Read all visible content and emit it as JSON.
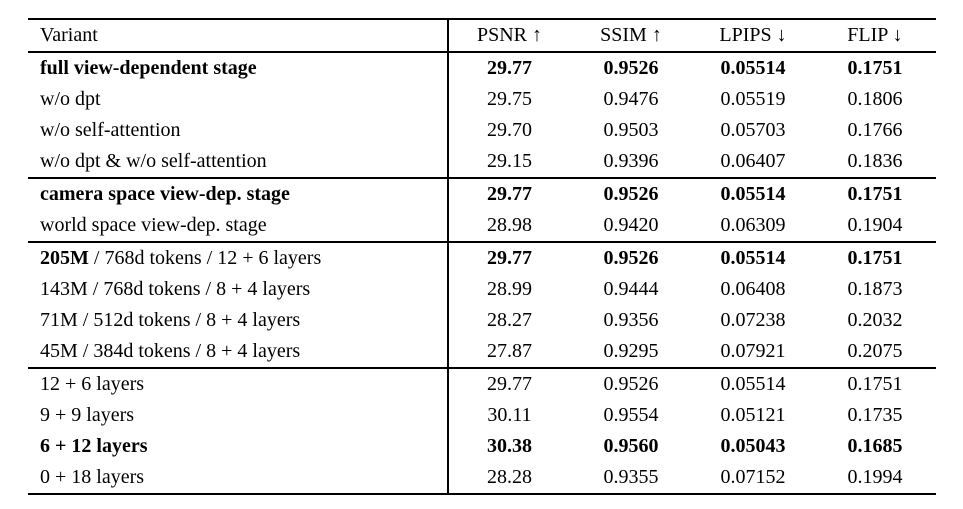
{
  "table": {
    "header": {
      "variant": "Variant",
      "psnr": "PSNR ↑",
      "ssim": "SSIM ↑",
      "lpips": "LPIPS ↓",
      "flip": "FLIP ↓"
    },
    "sections": [
      {
        "rows": [
          {
            "variant": "full view-dependent stage",
            "psnr": "29.77",
            "ssim": "0.9526",
            "lpips": "0.05514",
            "flip": "0.1751"
          },
          {
            "variant": "w/o dpt",
            "psnr": "29.75",
            "ssim": "0.9476",
            "lpips": "0.05519",
            "flip": "0.1806"
          },
          {
            "variant": "w/o self-attention",
            "psnr": "29.70",
            "ssim": "0.9503",
            "lpips": "0.05703",
            "flip": "0.1766"
          },
          {
            "variant": "w/o dpt & w/o self-attention",
            "psnr": "29.15",
            "ssim": "0.9396",
            "lpips": "0.06407",
            "flip": "0.1836"
          }
        ]
      },
      {
        "rows": [
          {
            "variant": "camera space view-dep. stage",
            "psnr": "29.77",
            "ssim": "0.9526",
            "lpips": "0.05514",
            "flip": "0.1751"
          },
          {
            "variant": "world space view-dep. stage",
            "psnr": "28.98",
            "ssim": "0.9420",
            "lpips": "0.06309",
            "flip": "0.1904"
          }
        ]
      },
      {
        "rows": [
          {
            "variant_prefix": "205M",
            "variant_rest": " / 768d tokens / 12 + 6 layers",
            "psnr": "29.77",
            "ssim": "0.9526",
            "lpips": "0.05514",
            "flip": "0.1751"
          },
          {
            "variant": "143M / 768d tokens / 8 + 4 layers",
            "psnr": "28.99",
            "ssim": "0.9444",
            "lpips": "0.06408",
            "flip": "0.1873"
          },
          {
            "variant": "71M / 512d tokens / 8 + 4 layers",
            "psnr": "28.27",
            "ssim": "0.9356",
            "lpips": "0.07238",
            "flip": "0.2032"
          },
          {
            "variant": "45M / 384d tokens / 8 + 4 layers",
            "psnr": "27.87",
            "ssim": "0.9295",
            "lpips": "0.07921",
            "flip": "0.2075"
          }
        ]
      },
      {
        "rows": [
          {
            "variant": "12 + 6 layers",
            "psnr": "29.77",
            "ssim": "0.9526",
            "lpips": "0.05514",
            "flip": "0.1751"
          },
          {
            "variant": "9 + 9 layers",
            "psnr": "30.11",
            "ssim": "0.9554",
            "lpips": "0.05121",
            "flip": "0.1735"
          },
          {
            "variant": "6 + 12 layers",
            "psnr": "30.38",
            "ssim": "0.9560",
            "lpips": "0.05043",
            "flip": "0.1685"
          },
          {
            "variant": "0 + 18 layers",
            "psnr": "28.28",
            "ssim": "0.9355",
            "lpips": "0.07152",
            "flip": "0.1994"
          }
        ]
      }
    ]
  }
}
